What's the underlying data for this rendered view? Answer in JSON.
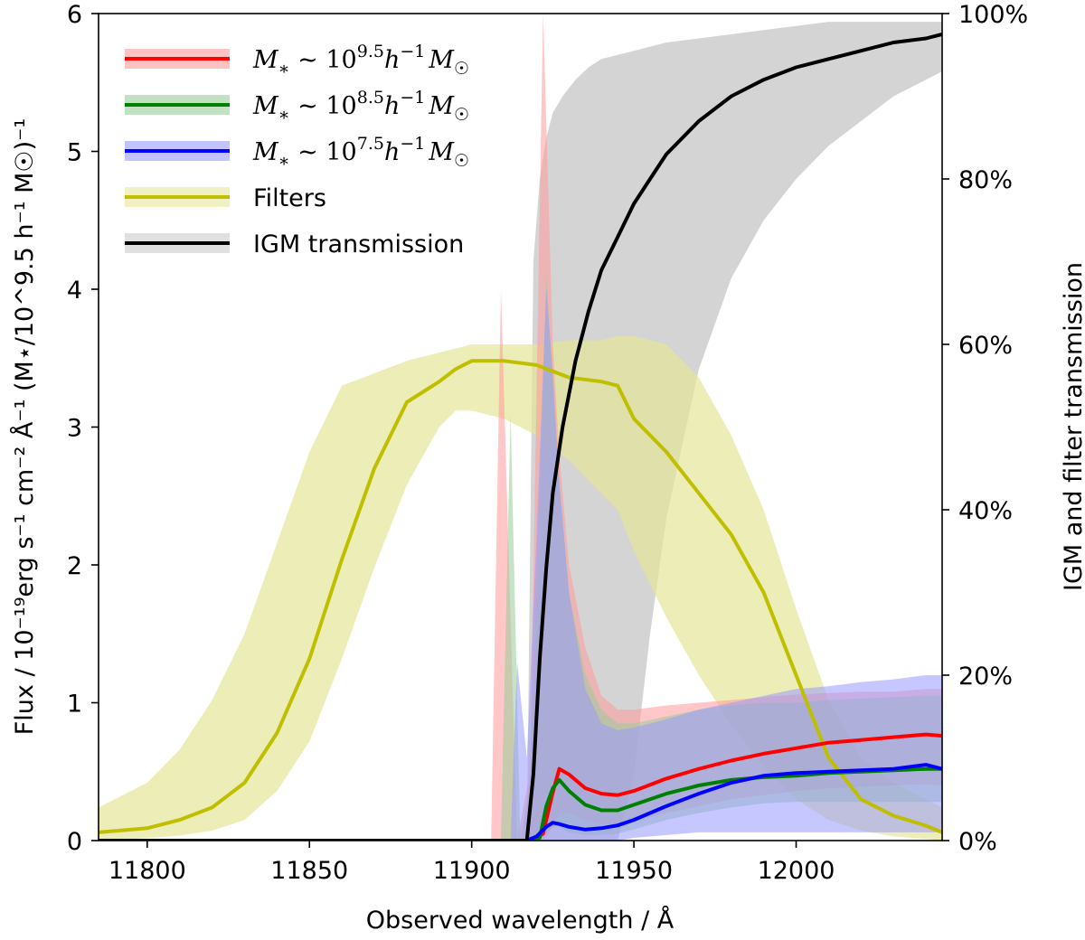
{
  "chart_data": {
    "type": "line",
    "xlabel": "Observed wavelength / Å",
    "ylabel": "Flux / 10⁻¹⁹erg s⁻¹ cm⁻² Å⁻¹ (M⋆/10^9.5 h⁻¹ M☉)⁻¹",
    "y2label": "IGM and filter transmission",
    "xlim": [
      11785,
      12045
    ],
    "ylim": [
      0,
      6
    ],
    "y2lim": [
      0,
      1
    ],
    "x_ticks": [
      11800,
      11850,
      11900,
      11950,
      12000
    ],
    "y_ticks": [
      0,
      1,
      2,
      3,
      4,
      5,
      6
    ],
    "y2_ticks": [
      "0%",
      "20%",
      "40%",
      "60%",
      "80%",
      "100%"
    ],
    "legend": {
      "position": "upper-left",
      "entries": [
        {
          "label": "M* ~ 10^9.5 h^-1 M☉",
          "color": "#ff0000"
        },
        {
          "label": "M* ~ 10^8.5 h^-1 M☉",
          "color": "#008000"
        },
        {
          "label": "M* ~ 10^7.5 h^-1 M☉",
          "color": "#0000ff"
        },
        {
          "label": "Filters",
          "color": "#bfbf00"
        },
        {
          "label": "IGM transmission",
          "color": "#000000"
        }
      ]
    },
    "series": [
      {
        "name": "M* ~ 10^9.5 h^-1 M☉",
        "axis": "left",
        "color": "#ff0000",
        "band_color": "#ff9999",
        "x": [
          11785,
          11906,
          11909,
          11914,
          11918,
          11922,
          11925,
          11927,
          11930,
          11935,
          11940,
          11945,
          11950,
          11960,
          11970,
          11980,
          11990,
          12000,
          12010,
          12020,
          12030,
          12040,
          12045
        ],
        "y": [
          0,
          0,
          0,
          0,
          0,
          0.05,
          0.35,
          0.52,
          0.48,
          0.38,
          0.34,
          0.33,
          0.36,
          0.45,
          0.52,
          0.58,
          0.63,
          0.67,
          0.71,
          0.73,
          0.75,
          0.77,
          0.76
        ],
        "lower": [
          0,
          0,
          0,
          0,
          0,
          0,
          0.1,
          0.2,
          0.2,
          0.15,
          0.12,
          0.12,
          0.14,
          0.2,
          0.25,
          0.3,
          0.33,
          0.36,
          0.38,
          0.39,
          0.4,
          0.41,
          0.4
        ],
        "upper": [
          0,
          0,
          4.0,
          0,
          0.5,
          6.0,
          3.6,
          2.8,
          2.0,
          1.4,
          1.05,
          0.95,
          0.95,
          0.98,
          1.0,
          1.02,
          1.04,
          1.06,
          1.07,
          1.08,
          1.08,
          1.1,
          1.1
        ]
      },
      {
        "name": "M* ~ 10^8.5 h^-1 M☉",
        "axis": "left",
        "color": "#008000",
        "band_color": "#99cc99",
        "x": [
          11785,
          11909,
          11912,
          11915,
          11918,
          11921,
          11923,
          11925,
          11927,
          11930,
          11935,
          11940,
          11945,
          11950,
          11960,
          11970,
          11980,
          11990,
          12000,
          12010,
          12020,
          12030,
          12040,
          12045
        ],
        "y": [
          0,
          0,
          0,
          0,
          0,
          0.02,
          0.25,
          0.38,
          0.44,
          0.36,
          0.26,
          0.22,
          0.22,
          0.26,
          0.34,
          0.4,
          0.44,
          0.46,
          0.47,
          0.49,
          0.5,
          0.51,
          0.52,
          0.52
        ],
        "lower": [
          0,
          0,
          0,
          0,
          0,
          0,
          0.05,
          0.1,
          0.1,
          0.06,
          0.04,
          0.04,
          0.05,
          0.08,
          0.15,
          0.2,
          0.24,
          0.27,
          0.28,
          0.28,
          0.28,
          0.28,
          0.28,
          0.28
        ],
        "upper": [
          0,
          0,
          3.1,
          0,
          0.4,
          2.5,
          4.1,
          3.3,
          2.6,
          1.8,
          1.2,
          0.95,
          0.85,
          0.85,
          0.9,
          0.95,
          0.98,
          1.0,
          1.0,
          1.02,
          1.03,
          1.04,
          1.05,
          1.05
        ]
      },
      {
        "name": "M* ~ 10^7.5 h^-1 M☉",
        "axis": "left",
        "color": "#0000ff",
        "band_color": "#9999ff",
        "x": [
          11785,
          11912,
          11914,
          11917,
          11920,
          11923,
          11925,
          11927,
          11930,
          11935,
          11940,
          11945,
          11950,
          11960,
          11970,
          11980,
          11990,
          12000,
          12010,
          12020,
          12030,
          12040,
          12045
        ],
        "y": [
          0,
          0,
          0,
          0,
          0.03,
          0.1,
          0.13,
          0.12,
          0.1,
          0.08,
          0.09,
          0.11,
          0.15,
          0.25,
          0.34,
          0.42,
          0.47,
          0.49,
          0.5,
          0.51,
          0.52,
          0.55,
          0.52
        ],
        "lower": [
          0,
          0,
          0,
          0,
          0,
          0,
          0,
          0,
          0,
          0,
          0,
          0,
          0.02,
          0.04,
          0.06,
          0.06,
          0.06,
          0.06,
          0.06,
          0.06,
          0.06,
          0.06,
          0.06
        ],
        "upper": [
          0,
          0,
          1.3,
          0.6,
          2.2,
          4.0,
          3.4,
          2.6,
          1.8,
          1.1,
          0.85,
          0.8,
          0.82,
          0.88,
          0.95,
          1.0,
          1.05,
          1.1,
          1.12,
          1.15,
          1.17,
          1.2,
          1.2
        ]
      },
      {
        "name": "Filters",
        "axis": "right",
        "color": "#bfbf00",
        "band_color": "#e6e699",
        "x": [
          11785,
          11800,
          11810,
          11820,
          11830,
          11840,
          11850,
          11860,
          11870,
          11880,
          11890,
          11895,
          11900,
          11910,
          11920,
          11930,
          11940,
          11945,
          11950,
          11960,
          11970,
          11980,
          11990,
          12000,
          12010,
          12020,
          12030,
          12040,
          12045
        ],
        "y": [
          0.01,
          0.015,
          0.025,
          0.04,
          0.07,
          0.13,
          0.22,
          0.34,
          0.45,
          0.53,
          0.555,
          0.57,
          0.58,
          0.58,
          0.575,
          0.56,
          0.555,
          0.55,
          0.51,
          0.47,
          0.42,
          0.37,
          0.3,
          0.2,
          0.1,
          0.05,
          0.03,
          0.018,
          0.01
        ],
        "lower": [
          0.0,
          0.003,
          0.006,
          0.012,
          0.025,
          0.06,
          0.12,
          0.22,
          0.33,
          0.43,
          0.5,
          0.52,
          0.52,
          0.51,
          0.49,
          0.46,
          0.42,
          0.4,
          0.35,
          0.27,
          0.2,
          0.14,
          0.09,
          0.05,
          0.025,
          0.012,
          0.005,
          0.002,
          0.0
        ],
        "upper": [
          0.04,
          0.07,
          0.11,
          0.17,
          0.25,
          0.36,
          0.47,
          0.55,
          0.565,
          0.58,
          0.59,
          0.595,
          0.6,
          0.6,
          0.6,
          0.605,
          0.605,
          0.61,
          0.61,
          0.6,
          0.56,
          0.49,
          0.4,
          0.28,
          0.17,
          0.1,
          0.07,
          0.05,
          0.04
        ]
      },
      {
        "name": "IGM transmission",
        "axis": "right",
        "color": "#000000",
        "band_color": "#cccccc",
        "x": [
          11785,
          11917,
          11919,
          11921,
          11923,
          11925,
          11928,
          11932,
          11936,
          11940,
          11945,
          11950,
          11955,
          11960,
          11970,
          11980,
          11990,
          12000,
          12010,
          12020,
          12030,
          12040,
          12045
        ],
        "y": [
          0,
          0,
          0.08,
          0.22,
          0.33,
          0.42,
          0.5,
          0.58,
          0.64,
          0.69,
          0.73,
          0.77,
          0.8,
          0.83,
          0.87,
          0.9,
          0.92,
          0.935,
          0.945,
          0.955,
          0.965,
          0.97,
          0.975
        ],
        "lower": [
          0,
          0,
          0,
          0,
          0,
          0,
          0,
          0,
          0,
          0,
          0,
          0.08,
          0.25,
          0.39,
          0.57,
          0.68,
          0.75,
          0.8,
          0.84,
          0.87,
          0.9,
          0.92,
          0.93
        ],
        "upper": [
          0,
          0,
          0.7,
          0.8,
          0.85,
          0.88,
          0.9,
          0.92,
          0.935,
          0.945,
          0.95,
          0.955,
          0.96,
          0.965,
          0.97,
          0.975,
          0.98,
          0.985,
          0.99,
          0.99,
          0.99,
          0.99,
          0.99
        ]
      }
    ]
  }
}
